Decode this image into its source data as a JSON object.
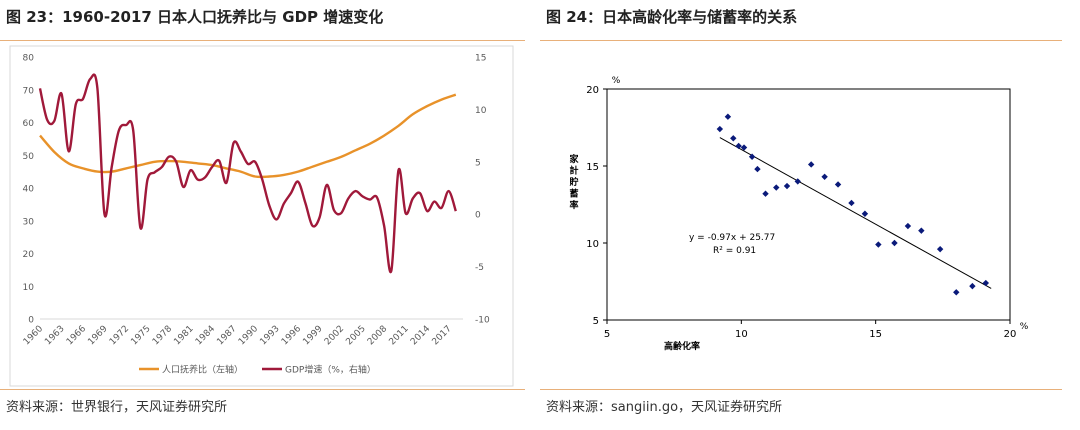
{
  "left": {
    "title": "图 23：1960-2017 日本人口抚养比与 GDP 增速变化",
    "source": "资料来源：世界银行，天风证券研究所"
  },
  "right": {
    "title": "图 24：日本高龄化率与储蓄率的关系",
    "source": "资料来源：sangiin.go，天风证券研究所"
  },
  "chart_data": [
    {
      "type": "line",
      "x_tick_labels": [
        "1960",
        "1963",
        "1966",
        "1969",
        "1972",
        "1975",
        "1978",
        "1981",
        "1984",
        "1987",
        "1990",
        "1993",
        "1996",
        "1999",
        "2002",
        "2005",
        "2008",
        "2011",
        "2014",
        "2017"
      ],
      "ylim_left": [
        0,
        80
      ],
      "yticks_left": [
        0,
        10,
        20,
        30,
        40,
        50,
        60,
        70,
        80
      ],
      "ylim_right": [
        -10,
        15
      ],
      "yticks_right": [
        -10,
        -5,
        0,
        5,
        10,
        15
      ],
      "grid": false,
      "legend_position": "bottom",
      "colors": {
        "dependency": "#e8922a",
        "gdp": "#a0193a"
      },
      "series": [
        {
          "name": "人口抚养比（左轴）",
          "axis": "left",
          "x": [
            1960,
            1962,
            1964,
            1966,
            1968,
            1970,
            1972,
            1974,
            1976,
            1978,
            1980,
            1982,
            1984,
            1986,
            1988,
            1990,
            1992,
            1994,
            1996,
            1998,
            2000,
            2002,
            2004,
            2006,
            2008,
            2010,
            2012,
            2014,
            2016,
            2018
          ],
          "values": [
            56,
            51,
            47.5,
            46,
            45,
            45,
            46,
            47,
            48,
            48.2,
            48,
            47.5,
            47,
            46,
            45,
            43.5,
            43.5,
            44,
            45,
            46.5,
            48,
            49.5,
            51.5,
            53.5,
            56,
            59,
            62.5,
            65,
            67,
            68.5
          ]
        },
        {
          "name": "GDP增速（%，右轴）",
          "axis": "right",
          "x": [
            1960,
            1961,
            1962,
            1963,
            1964,
            1965,
            1966,
            1967,
            1968,
            1969,
            1970,
            1971,
            1972,
            1973,
            1974,
            1975,
            1976,
            1977,
            1978,
            1979,
            1980,
            1981,
            1982,
            1983,
            1984,
            1985,
            1986,
            1987,
            1988,
            1989,
            1990,
            1991,
            1992,
            1993,
            1994,
            1995,
            1996,
            1997,
            1998,
            1999,
            2000,
            2001,
            2002,
            2003,
            2004,
            2005,
            2006,
            2007,
            2008,
            2009,
            2010,
            2011,
            2012,
            2013,
            2014,
            2015,
            2016,
            2017,
            2018
          ],
          "values": [
            12,
            9,
            8.9,
            11.5,
            6,
            10.5,
            11,
            12.9,
            12,
            0,
            4.5,
            8,
            8.5,
            8,
            -1.3,
            3.3,
            4,
            4.5,
            5.5,
            5,
            2.6,
            4.2,
            3.3,
            3.5,
            4.5,
            5.1,
            3,
            6.8,
            6,
            4.8,
            5,
            3.3,
            0.8,
            -0.5,
            1,
            2,
            3.1,
            1.1,
            -1.1,
            -0.3,
            2.8,
            0.4,
            0.1,
            1.5,
            2.2,
            1.7,
            1.4,
            1.6,
            -1.1,
            -5.4,
            4.2,
            0.1,
            1.5,
            2,
            0.3,
            1.2,
            0.6,
            2.2,
            0.3
          ]
        }
      ]
    },
    {
      "type": "scatter",
      "xlabel": "高齢化率",
      "ylabel": "家計貯蓄率",
      "x_unit": "%",
      "y_unit": "%",
      "xlim": [
        5,
        20
      ],
      "ylim": [
        5,
        20
      ],
      "xticks": [
        5,
        10,
        15,
        20
      ],
      "yticks": [
        5,
        10,
        15,
        20
      ],
      "marker_color": "#0a1a7a",
      "points": [
        [
          9.2,
          17.4
        ],
        [
          9.5,
          18.2
        ],
        [
          9.7,
          16.8
        ],
        [
          9.9,
          16.3
        ],
        [
          10.1,
          16.2
        ],
        [
          10.4,
          15.6
        ],
        [
          10.6,
          14.8
        ],
        [
          10.9,
          13.2
        ],
        [
          11.3,
          13.6
        ],
        [
          11.7,
          13.7
        ],
        [
          12.1,
          14.0
        ],
        [
          12.6,
          15.1
        ],
        [
          13.1,
          14.3
        ],
        [
          13.6,
          13.8
        ],
        [
          14.1,
          12.6
        ],
        [
          14.6,
          11.9
        ],
        [
          15.1,
          9.9
        ],
        [
          15.7,
          10.0
        ],
        [
          16.2,
          11.1
        ],
        [
          16.7,
          10.8
        ],
        [
          17.4,
          9.6
        ],
        [
          18.0,
          6.8
        ],
        [
          18.6,
          7.2
        ],
        [
          19.1,
          7.4
        ]
      ],
      "trendline": {
        "slope": -0.97,
        "intercept": 25.77,
        "x_range": [
          9.2,
          19.3
        ]
      },
      "equation_text": "y = -0.97x + 25.77",
      "r2_text": "R² = 0.91"
    }
  ]
}
